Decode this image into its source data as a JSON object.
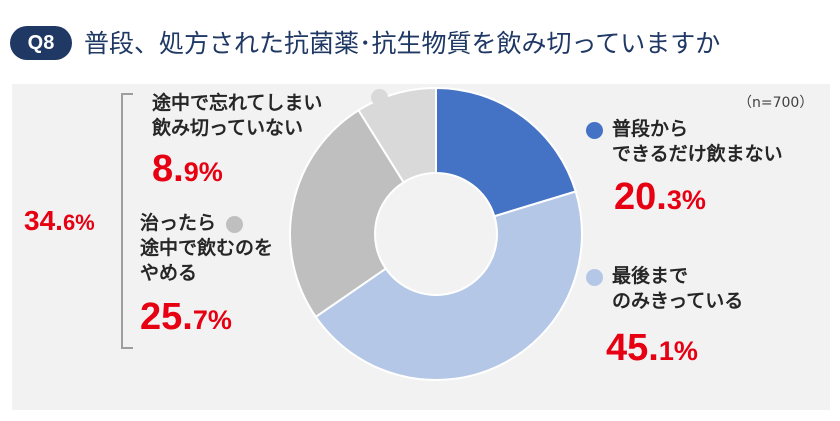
{
  "header": {
    "badge": "Q8",
    "title": "普段、処方された抗菌薬･抗生物質を飲み切っていますか"
  },
  "sample": "（n=700）",
  "bracket_total": {
    "int": "34.",
    "dec": "6%"
  },
  "labels": [
    {
      "text": [
        "普段から",
        "できるだけ飲まない"
      ],
      "int": "20.",
      "dec": "3%"
    },
    {
      "text": [
        "最後まで",
        "のみきっている"
      ],
      "int": "45.",
      "dec": "1%"
    },
    {
      "text": [
        "治ったら",
        "途中で飲むのを",
        "やめる"
      ],
      "int": "25.",
      "dec": "7%"
    },
    {
      "text": [
        "途中で忘れてしまい",
        "飲み切っていない"
      ],
      "int": "8.",
      "dec": "9%"
    }
  ],
  "chart_data": {
    "type": "pie",
    "donut": true,
    "categories": [
      "普段からできるだけ飲まない",
      "最後までのみきっている",
      "治ったら途中で飲むのをやめる",
      "途中で忘れてしまい飲み切っていない"
    ],
    "values": [
      20.3,
      45.1,
      25.7,
      8.9
    ],
    "colors": [
      "#4472c4",
      "#b4c7e7",
      "#bfbfbf",
      "#d9d9d9"
    ],
    "start": "12 o'clock",
    "direction": "clockwise"
  }
}
